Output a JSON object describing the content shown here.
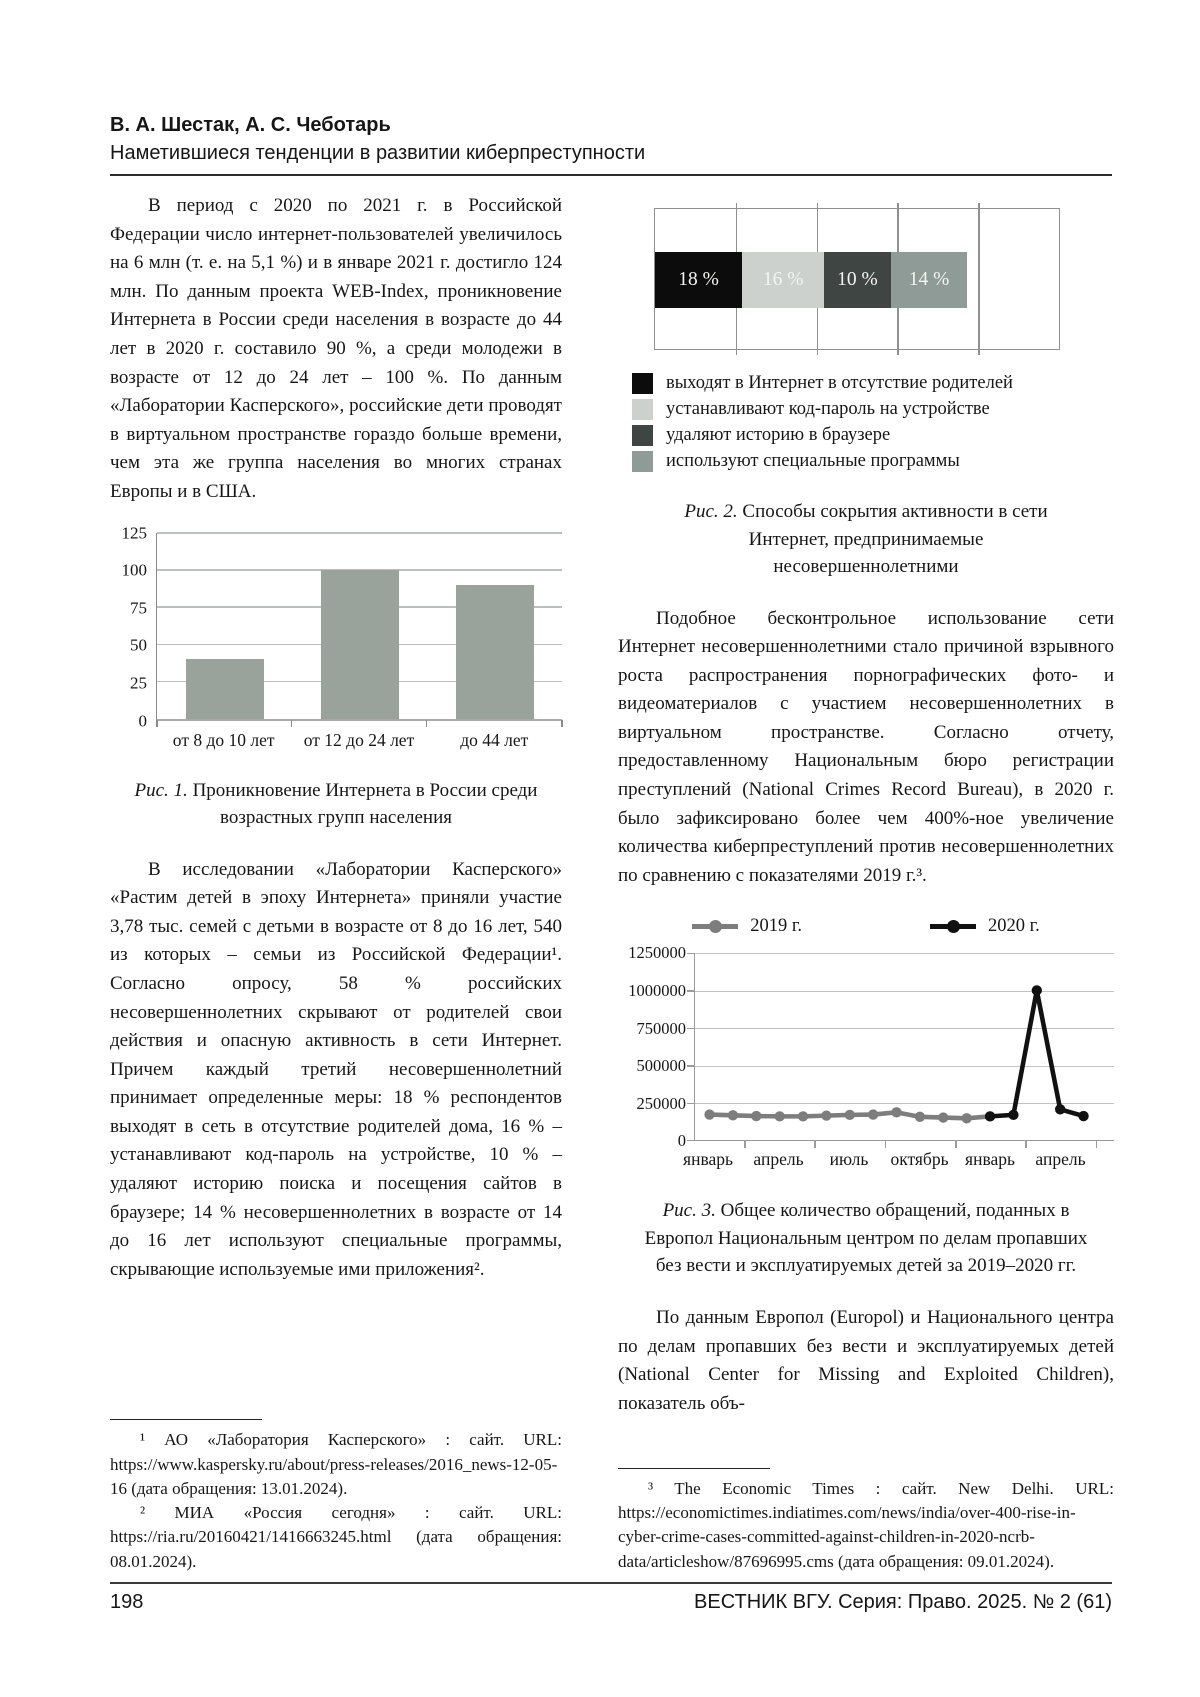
{
  "header": {
    "authors": "В. А. Шестак, А. С. Чеботарь",
    "running_title": "Наметившиеся тенденции в развитии киберпреступности"
  },
  "left_column": {
    "paragraph_1": "В период с 2020 по 2021 г. в Российской Федерации число интернет-пользователей увеличилось на 6 млн (т. е. на 5,1 %) и в январе 2021 г. достигло 124 млн. По данным проекта WEB-Index, проникновение Интернета в России среди населения в возрасте до 44 лет в 2020 г. составило 90 %, а среди молодежи в возрасте от 12 до 24 лет – 100 %. По данным «Лаборатории Касперского», российские дети проводят в виртуальном пространстве гораздо больше времени, чем эта же группа населения во многих странах Европы и в США.",
    "paragraph_2": "В исследовании «Лаборатории Касперского» «Растим детей в эпоху Интернета» приняли участие 3,78 тыс. семей с детьми в возрасте от 8 до 16 лет, 540 из которых – семьи из Российской Федерации¹. Согласно опросу, 58 % российских несовершеннолетних скрывают от родителей свои действия и опасную активность в сети Интернет. Причем каждый третий несовершеннолетний принимает определенные меры: 18 % респондентов выходят в сеть в отсутствие родителей дома, 16 % – устанавливают код-пароль на устройстве, 10 % – удаляют историю поиска и посещения сайтов в браузере; 14 % несовершеннолетних в возрасте от 14 до 16 лет используют специальные программы, скрывающие используемые ими приложения².",
    "footnote_1": "¹ АО «Лаборатория Касперского» : сайт. URL: https://www.kaspersky.ru/about/press-releases/2016_news-12-05-16 (дата обращения: 13.01.2024).",
    "footnote_2": "² МИА «Россия сегодня» : сайт. URL: https://ria.ru/20160421/1416663245.html (дата обращения: 08.01.2024)."
  },
  "right_column": {
    "paragraph_1": "Подобное бесконтрольное использование сети Интернет несовершеннолетними стало причиной взрывного роста распространения порнографических фото- и видеоматериалов с участием несовершеннолетних в виртуальном пространстве. Согласно отчету, предоставленному Национальным бюро регистрации преступлений (National Crimes Record Bureau), в 2020 г. было зафиксировано более чем 400%-ное увеличение количества киберпреступлений против несовершеннолетних по сравнению с показателями 2019 г.³.",
    "paragraph_2": "По данным Европол (Europol) и Национального центра по делам пропавших без вести и эксплуатируемых детей (National Center for Missing and Exploited Children), показатель объ-",
    "footnote_3": "³ The Economic Times : сайт. New Delhi. URL: https://economictimes.indiatimes.com/news/india/over-400-rise-in-cyber-crime-cases-committed-against-children-in-2020-ncrb-data/articleshow/87696995.cms (дата обращения: 09.01.2024)."
  },
  "figures": {
    "fig1": {
      "label": "Рис. 1.",
      "caption": " Проникновение Интернета в России среди возрастных групп населения"
    },
    "fig2": {
      "label": "Рис. 2.",
      "caption": " Способы сокрытия активности в сети Интернет, предпринимаемые несовершеннолетними"
    },
    "fig3": {
      "label": "Рис. 3.",
      "caption": " Общее количество обращений, поданных в Европол Национальным центром по делам пропавших без вести и эксплуатируемых детей за 2019–2020 гг."
    }
  },
  "footer": {
    "page_number": "198",
    "journal_line": "ВЕСТНИК ВГУ. Серия: Право. 2025. № 2 (61)"
  },
  "chart_data": [
    {
      "id": "fig1",
      "type": "bar",
      "title": "Рис. 1. Проникновение Интернета в России среди возрастных групп населения",
      "categories": [
        "от 8 до 10 лет",
        "от 12 до 24 лет",
        "до 44 лет"
      ],
      "values": [
        40,
        100,
        90
      ],
      "unit": "percent",
      "ylim": [
        0,
        125
      ],
      "yticks": [
        0,
        25,
        50,
        75,
        100,
        125
      ],
      "bar_color": "#9aa39b",
      "grid": true
    },
    {
      "id": "fig2",
      "type": "stacked-bar-horizontal",
      "title": "Рис. 2. Способы сокрытия активности в сети Интернет, предпринимаемые несовершеннолетними",
      "axis_max": 75,
      "gridline_step": 15,
      "segments": [
        {
          "label": "18 %",
          "value": 18,
          "color": "#0c0c0c",
          "legend": "выходят в Интернет в отсутствие родителей"
        },
        {
          "label": "16 %",
          "value": 16,
          "color": "#ccd1cd",
          "legend": "устанавливают код-пароль на устройстве"
        },
        {
          "label": "10 %",
          "value": 10,
          "color": "#3f4543",
          "legend": "удаляют историю в браузере"
        },
        {
          "label": "14 %",
          "value": 14,
          "color": "#8e9b96",
          "legend": "используют специальные программы"
        }
      ]
    },
    {
      "id": "fig3",
      "type": "line",
      "title": "Рис. 3. Общее количество обращений, поданных в Европол Национальным центром по делам пропавших без вести и эксплуатируемых детей за 2019–2020 гг.",
      "ylim": [
        0,
        1250000
      ],
      "yticks": [
        0,
        250000,
        500000,
        750000,
        1000000,
        1250000
      ],
      "x_tick_labels": [
        "январь",
        "апрель",
        "июль",
        "октябрь",
        "январь",
        "апрель"
      ],
      "x_tick_months": [
        0,
        3,
        6,
        9,
        12,
        15
      ],
      "legend_position": "top",
      "grid": true,
      "series": [
        {
          "name": "2019 г.",
          "color": "#7d7d7d",
          "start_month": 0,
          "values": [
            170000,
            165000,
            160000,
            158000,
            158000,
            163000,
            168000,
            170000,
            185000,
            155000,
            150000,
            145000,
            158000
          ]
        },
        {
          "name": "2020 г.",
          "color": "#111111",
          "start_month": 12,
          "values": [
            158000,
            168000,
            1000000,
            205000,
            160000
          ]
        }
      ]
    }
  ]
}
